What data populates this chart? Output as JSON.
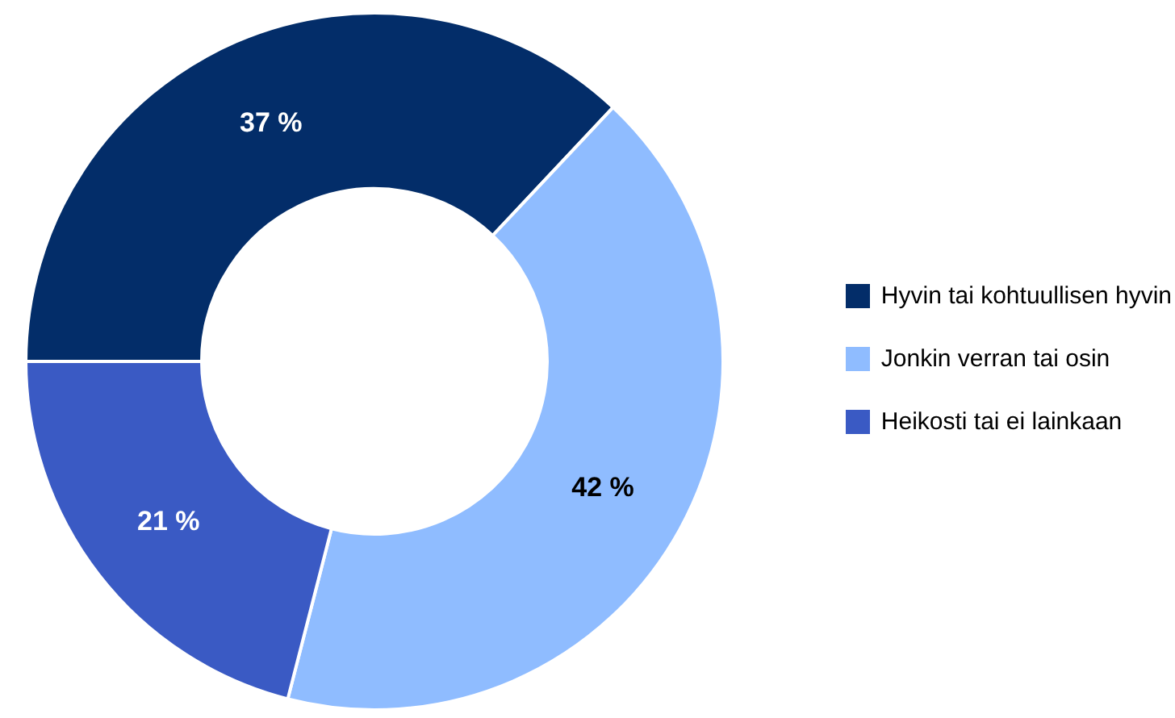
{
  "chart_data": {
    "type": "donut",
    "categories": [
      "Hyvin tai kohtuullisen hyvin",
      "Jonkin verran tai osin",
      "Heikosti tai ei lainkaan"
    ],
    "values": [
      37,
      42,
      21
    ],
    "colors": [
      "#032d69",
      "#8fbcff",
      "#3a5ac4"
    ],
    "value_labels": [
      "37 %",
      "42 %",
      "21 %"
    ],
    "legend": "right"
  }
}
